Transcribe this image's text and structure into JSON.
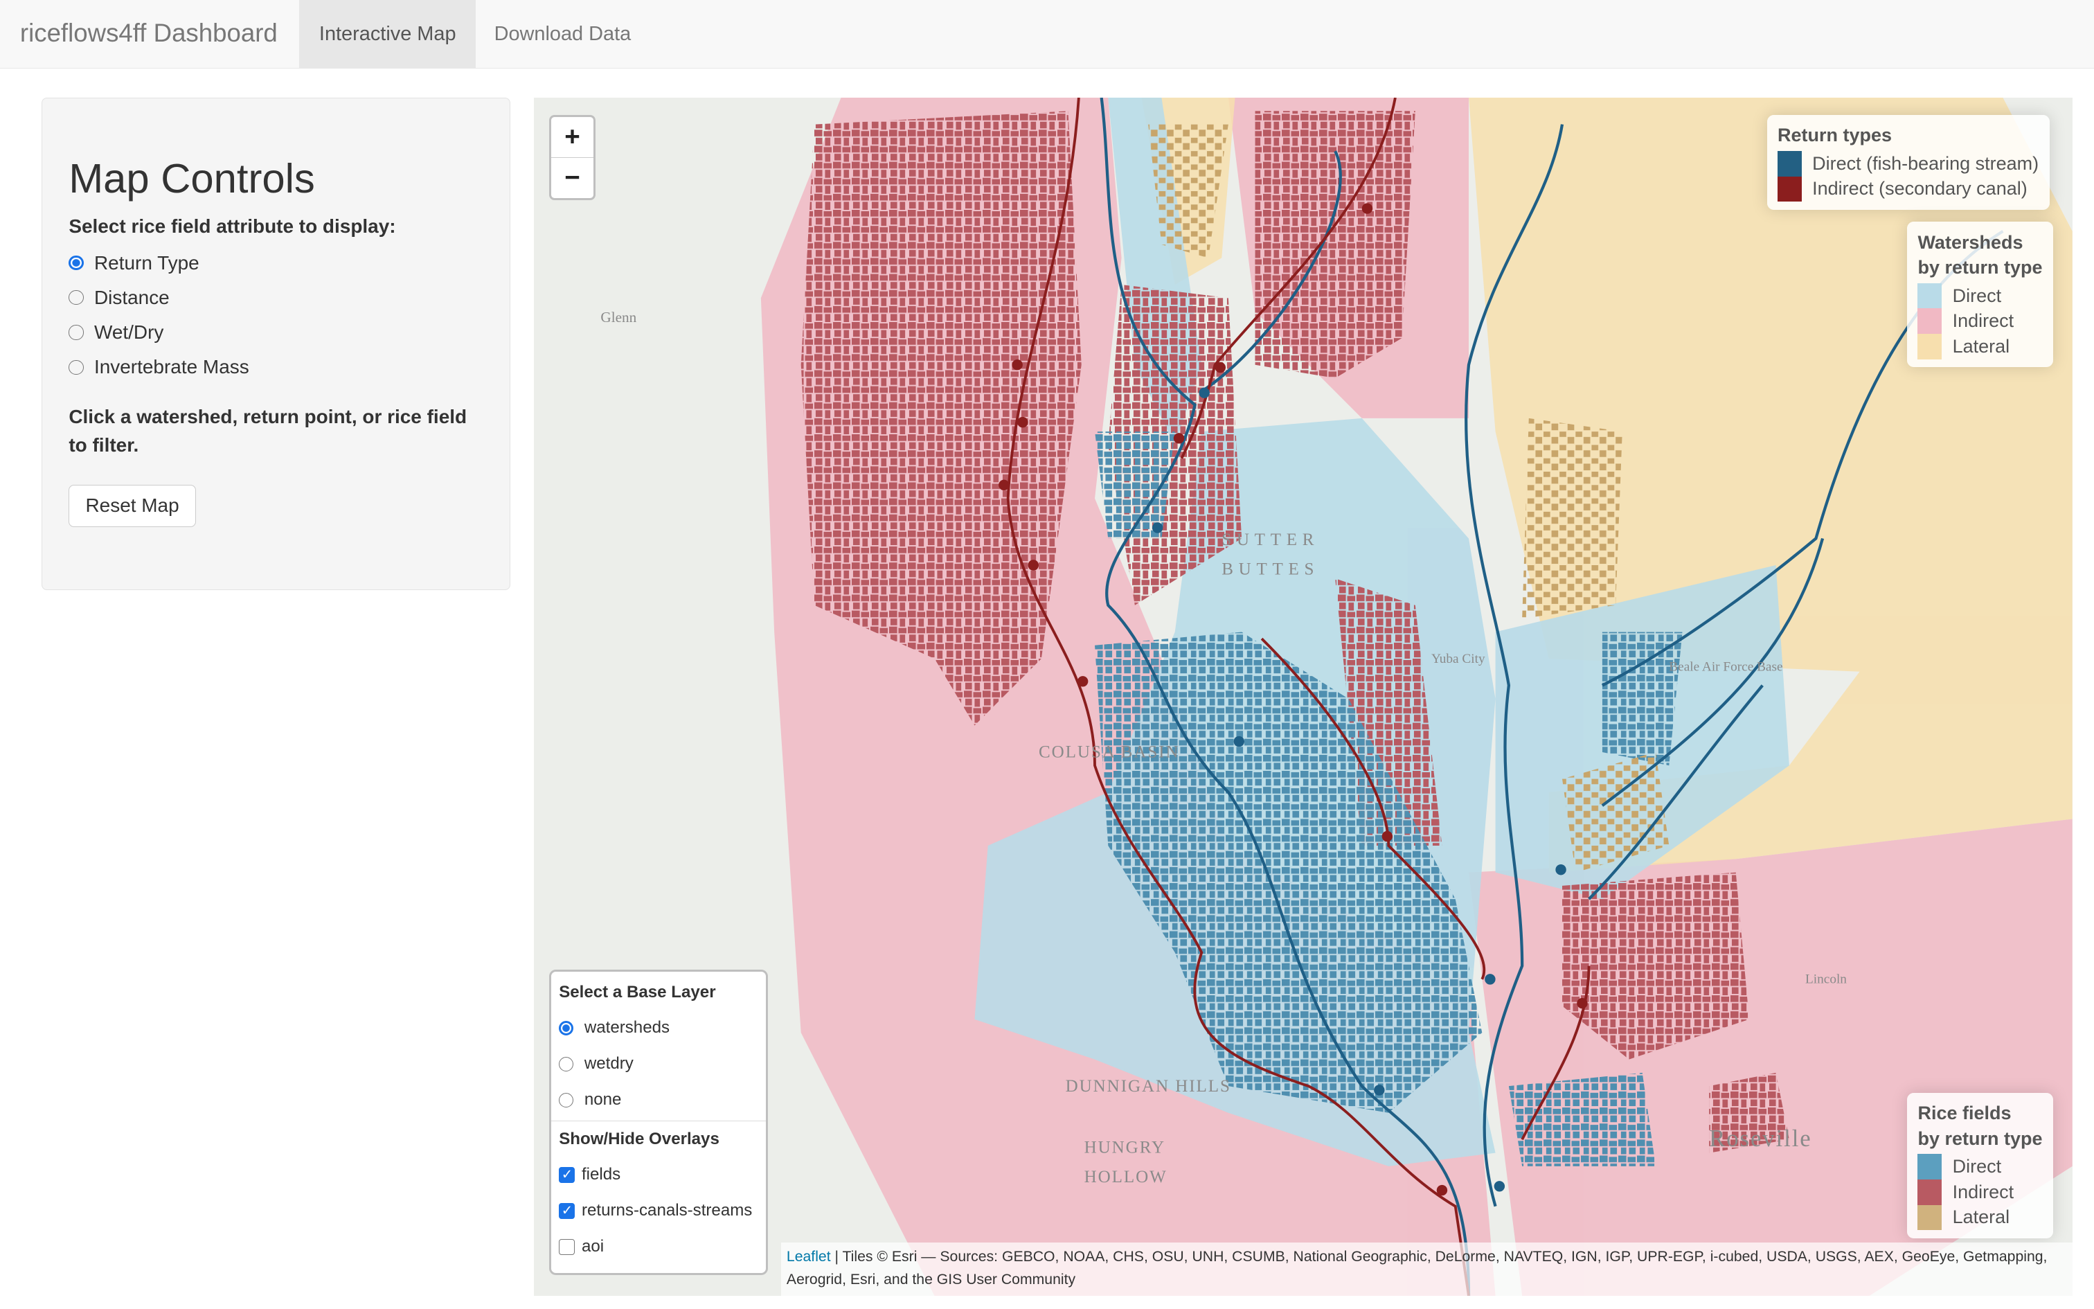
{
  "navbar": {
    "brand": "riceflows4ff Dashboard",
    "tabs": [
      {
        "label": "Interactive Map",
        "active": true
      },
      {
        "label": "Download Data",
        "active": false
      }
    ]
  },
  "sidebar": {
    "title": "Map Controls",
    "attribute_label": "Select rice field attribute to display:",
    "options": [
      {
        "label": "Return Type",
        "selected": true
      },
      {
        "label": "Distance",
        "selected": false
      },
      {
        "label": "Wet/Dry",
        "selected": false
      },
      {
        "label": "Invertebrate Mass",
        "selected": false
      }
    ],
    "hint": "Click a watershed, return point, or rice field to filter.",
    "reset_label": "Reset Map"
  },
  "map": {
    "zoom_in": "+",
    "zoom_out": "−",
    "return_legend": {
      "title": "Return types",
      "items": [
        {
          "label": "Direct (fish-bearing stream)",
          "color": "#236083"
        },
        {
          "label": "Indirect (secondary canal)",
          "color": "#8b1e1e"
        }
      ]
    },
    "watershed_legend": {
      "title1": "Watersheds",
      "title2": "by return type",
      "items": [
        {
          "label": "Direct",
          "color": "#b9dbe8"
        },
        {
          "label": "Indirect",
          "color": "#f1b9c4"
        },
        {
          "label": "Lateral",
          "color": "#f7dfae"
        }
      ]
    },
    "field_legend": {
      "title1": "Rice fields",
      "title2": "by return type",
      "items": [
        {
          "label": "Direct",
          "color": "#5c9fbf"
        },
        {
          "label": "Indirect",
          "color": "#b85a62"
        },
        {
          "label": "Lateral",
          "color": "#d0b27e"
        }
      ]
    },
    "layers": {
      "base_title": "Select a Base Layer",
      "base": [
        {
          "label": "watersheds",
          "selected": true
        },
        {
          "label": "wetdry",
          "selected": false
        },
        {
          "label": "none",
          "selected": false
        }
      ],
      "overlay_title": "Show/Hide Overlays",
      "overlays": [
        {
          "label": "fields",
          "checked": true
        },
        {
          "label": "returns-canals-streams",
          "checked": true
        },
        {
          "label": "aoi",
          "checked": false
        }
      ]
    },
    "place_labels": [
      "SUTTER",
      "BUTTES",
      "COLUSA BASIN",
      "DUNNIGAN HILLS",
      "HUNGRY",
      "HOLLOW",
      "Roseville",
      "Yuba City",
      "Beale Air Force Base",
      "Lincoln",
      "Glenn"
    ],
    "attribution": {
      "link": "Leaflet",
      "text": " | Tiles © Esri — Sources: GEBCO, NOAA, CHS, OSU, UNH, CSUMB, National Geographic, DeLorme, NAVTEQ, IGN, IGP, UPR-EGP, i-cubed, USDA, USGS, AEX, GeoEye, Getmapping, Aerogrid, Esri, and the GIS User Community"
    }
  }
}
